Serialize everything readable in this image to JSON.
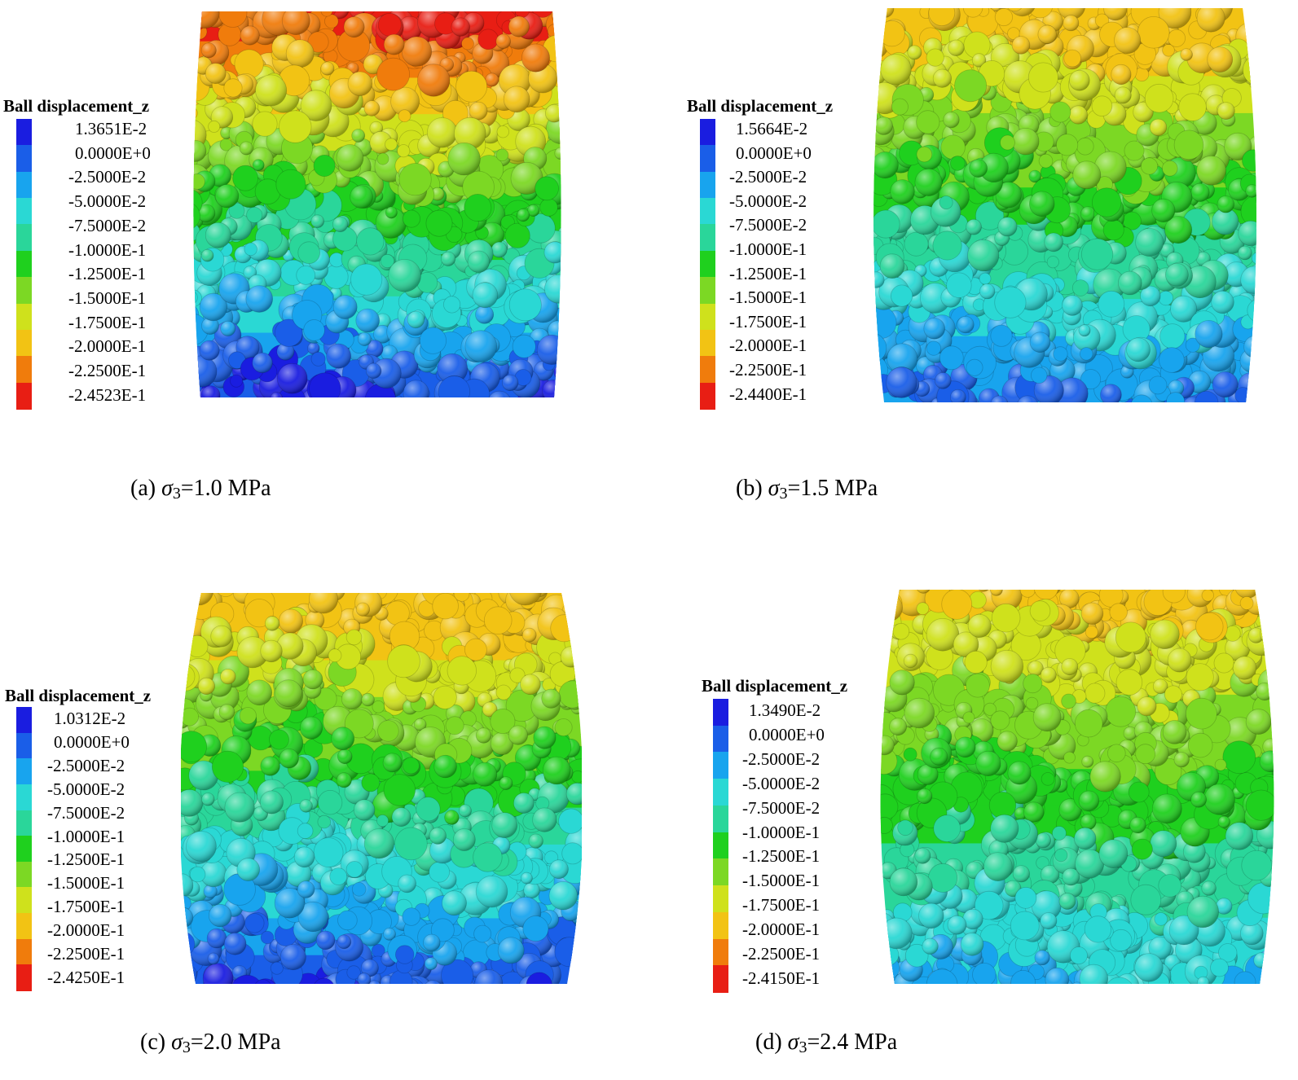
{
  "legend_title": "Ball displacement_z",
  "colorbar_colors": [
    "#1a1de0",
    "#1a5ee8",
    "#18a4ee",
    "#2ad8d4",
    "#2ad69a",
    "#1fd01e",
    "#7cd824",
    "#cfe11c",
    "#f2c314",
    "#f07c0c",
    "#e81e14"
  ],
  "panels": [
    {
      "id": "a",
      "caption_prefix": "(a) ",
      "caption_symbol": "σ",
      "caption_subscript": "3",
      "caption_value": "=1.0 MPa",
      "ticks": [
        "1.3651E-2",
        "0.0000E+0",
        "-2.5000E-2",
        "-5.0000E-2",
        "-7.5000E-2",
        "-1.0000E-1",
        "-1.2500E-1",
        "-1.5000E-1",
        "-1.7500E-1",
        "-2.0000E-1",
        "-2.2500E-1",
        "-2.4523E-1"
      ]
    },
    {
      "id": "b",
      "caption_prefix": "(b) ",
      "caption_symbol": "σ",
      "caption_subscript": "3",
      "caption_value": "=1.5 MPa",
      "ticks": [
        "1.5664E-2",
        "0.0000E+0",
        "-2.5000E-2",
        "-5.0000E-2",
        "-7.5000E-2",
        "-1.0000E-1",
        "-1.2500E-1",
        "-1.5000E-1",
        "-1.7500E-1",
        "-2.0000E-1",
        "-2.2500E-1",
        "-2.4400E-1"
      ]
    },
    {
      "id": "c",
      "caption_prefix": "(c) ",
      "caption_symbol": "σ",
      "caption_subscript": "3",
      "caption_value": "=2.0 MPa",
      "ticks": [
        "1.0312E-2",
        "0.0000E+0",
        "-2.5000E-2",
        "-5.0000E-2",
        "-7.5000E-2",
        "-1.0000E-1",
        "-1.2500E-1",
        "-1.5000E-1",
        "-1.7500E-1",
        "-2.0000E-1",
        "-2.2500E-1",
        "-2.4250E-1"
      ]
    },
    {
      "id": "d",
      "caption_prefix": "(d) ",
      "caption_symbol": "σ",
      "caption_subscript": "3",
      "caption_value": "=2.4 MPa",
      "ticks": [
        "1.3490E-2",
        "0.0000E+0",
        "-2.5000E-2",
        "-5.0000E-2",
        "-7.5000E-2",
        "-1.0000E-1",
        "-1.2500E-1",
        "-1.5000E-1",
        "-1.7500E-1",
        "-2.0000E-1",
        "-2.2500E-1",
        "-2.4150E-1"
      ]
    }
  ]
}
